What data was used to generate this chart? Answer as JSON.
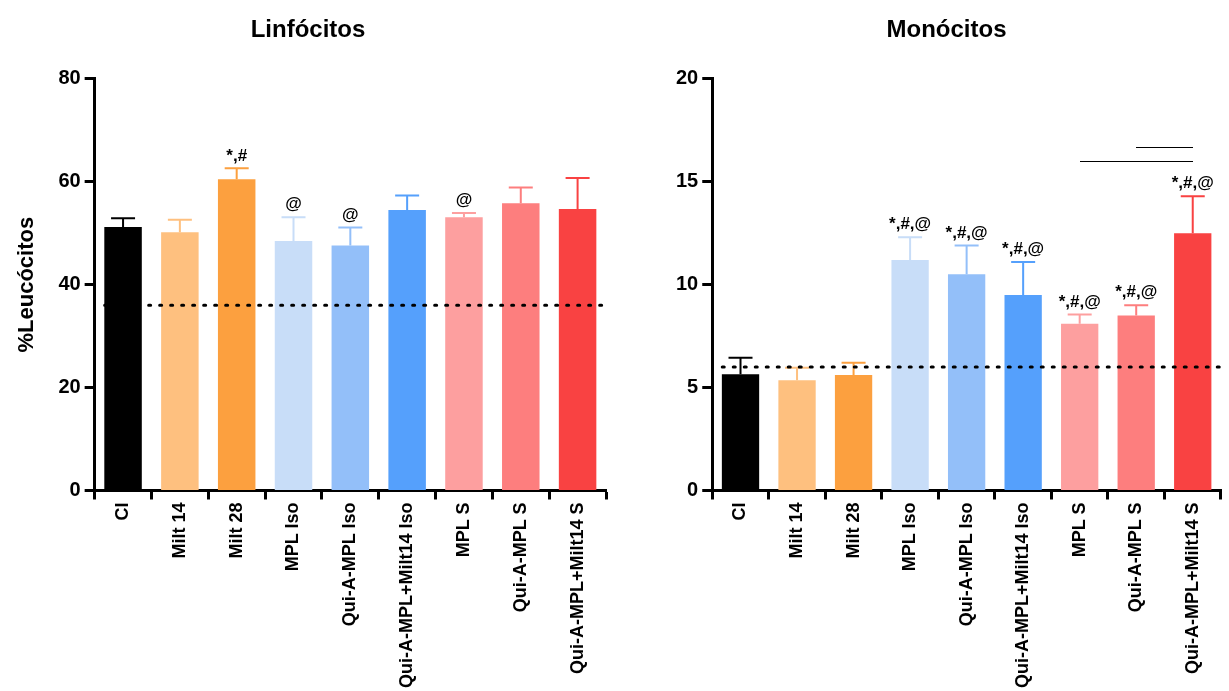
{
  "chart_data": [
    {
      "type": "bar",
      "title": "Linfócitos",
      "ylabel": "%Leucócitos",
      "categories": [
        "CI",
        "Milt 14",
        "Milt 28",
        "MPL Iso",
        "Qui-A-MPL Iso",
        "Qui-A-MPL+Milt14 Iso",
        "MPL S",
        "Qui-A-MPL S",
        "Qui-A-MPL+Milt14 S"
      ],
      "values": [
        51.2,
        50.2,
        60.5,
        48.5,
        47.6,
        54.5,
        53.1,
        55.8,
        54.7
      ],
      "errors": [
        1.7,
        2.4,
        2.1,
        4.6,
        3.5,
        2.8,
        0.8,
        3.1,
        6.0
      ],
      "colors": [
        "#000000",
        "#fec07f",
        "#fca03f",
        "#c8ddf8",
        "#93bff9",
        "#55a0fc",
        "#fd9f9f",
        "#fd7e7e",
        "#f94242"
      ],
      "ylim": [
        0,
        80
      ],
      "yticks": [
        0,
        20,
        40,
        60,
        80
      ],
      "grid": false,
      "legend": false,
      "ref_lines": [
        {
          "axis": "y",
          "value": 36,
          "line_style": "dotted",
          "color": "#000000"
        }
      ],
      "annotations": [
        {
          "text": "*,#",
          "x": "Milt 28",
          "y": 62.6
        },
        {
          "text": "@",
          "x": "MPL Iso",
          "y": 53.1
        },
        {
          "text": "@",
          "x": "Qui-A-MPL Iso",
          "y": 51.1
        },
        {
          "text": "@",
          "x": "MPL S",
          "y": 53.9
        }
      ]
    },
    {
      "type": "bar",
      "title": "Monócitos",
      "categories": [
        "CI",
        "Milt 14",
        "Milt 28",
        "MPL Iso",
        "Qui-A-MPL Iso",
        "Qui-A-MPL+Milt14 Iso",
        "MPL S",
        "Qui-A-MPL S",
        "Qui-A-MPL+Milt14 S"
      ],
      "values": [
        5.65,
        5.36,
        5.61,
        11.2,
        10.5,
        9.5,
        8.1,
        8.5,
        12.5
      ],
      "errors": [
        0.8,
        0.6,
        0.6,
        1.1,
        1.4,
        1.6,
        0.45,
        0.5,
        1.8
      ],
      "colors": [
        "#000000",
        "#fec07f",
        "#fca03f",
        "#c8ddf8",
        "#93bff9",
        "#55a0fc",
        "#fd9f9f",
        "#fd7e7e",
        "#f94242"
      ],
      "ylim": [
        0,
        20
      ],
      "yticks": [
        0,
        5,
        10,
        15,
        20
      ],
      "grid": false,
      "legend": false,
      "ref_lines": [
        {
          "axis": "y",
          "value": 6,
          "line_style": "dotted",
          "color": "#000000"
        }
      ],
      "annotations": [
        {
          "text": "*,#,@",
          "x": "MPL Iso",
          "y": 12.3
        },
        {
          "text": "*,#,@",
          "x": "Qui-A-MPL Iso",
          "y": 11.9
        },
        {
          "text": "*,#,@",
          "x": "Qui-A-MPL+Milt14 Iso",
          "y": 11.1
        },
        {
          "text": "*,#,@",
          "x": "MPL S",
          "y": 8.55
        },
        {
          "text": "*,#,@",
          "x": "Qui-A-MPL S",
          "y": 9.0
        },
        {
          "text": "*,#,@",
          "x": "Qui-A-MPL+Milt14 S",
          "y": 14.3
        }
      ]
    }
  ]
}
